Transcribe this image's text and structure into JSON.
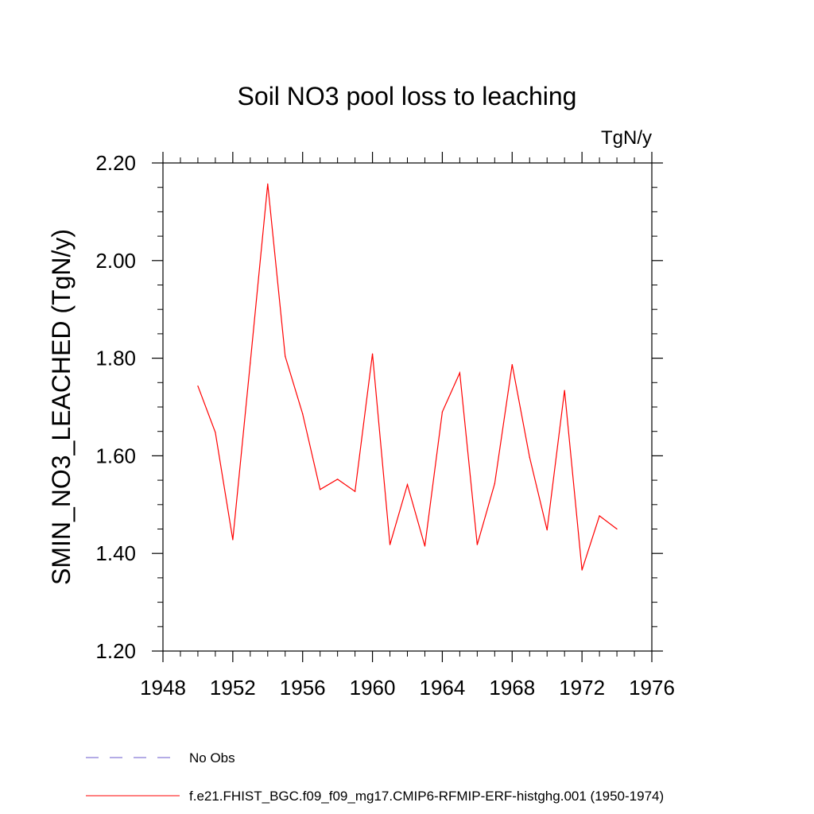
{
  "chart_data": {
    "type": "line",
    "title": "Soil NO3 pool loss to leaching",
    "units": "TgN/y",
    "xlabel": "",
    "ylabel": "SMIN_NO3_LEACHED  (TgN/y)",
    "xlim": [
      1948,
      1976
    ],
    "ylim": [
      1.2,
      2.2
    ],
    "x_ticks": [
      "1948",
      "1952",
      "1956",
      "1960",
      "1964",
      "1968",
      "1972",
      "1976"
    ],
    "y_ticks": [
      "1.20",
      "1.40",
      "1.60",
      "1.80",
      "2.00",
      "2.20"
    ],
    "grid": false,
    "legend_position": "bottom-left, below plot",
    "series": [
      {
        "name": "f.e21.FHIST_BGC.f09_f09_mg17.CMIP6-RFMIP-ERF-histghg.001 (1950-1974)",
        "color": "#ff0000",
        "style": "solid",
        "x": [
          1950,
          1951,
          1952,
          1953,
          1954,
          1955,
          1956,
          1957,
          1958,
          1959,
          1960,
          1961,
          1962,
          1963,
          1964,
          1965,
          1966,
          1967,
          1968,
          1969,
          1970,
          1971,
          1972,
          1973,
          1974
        ],
        "values": [
          1.743,
          1.648,
          1.428,
          1.79,
          2.157,
          1.804,
          1.686,
          1.531,
          1.552,
          1.527,
          1.809,
          1.418,
          1.541,
          1.415,
          1.69,
          1.77,
          1.418,
          1.543,
          1.787,
          1.597,
          1.448,
          1.734,
          1.366,
          1.477,
          1.45
        ]
      }
    ],
    "legend": [
      {
        "label": "No Obs",
        "color": "#6a5acd",
        "style": "dashed"
      },
      {
        "label": "f.e21.FHIST_BGC.f09_f09_mg17.CMIP6-RFMIP-ERF-histghg.001 (1950-1974)",
        "color": "#ff0000",
        "style": "solid"
      }
    ]
  }
}
